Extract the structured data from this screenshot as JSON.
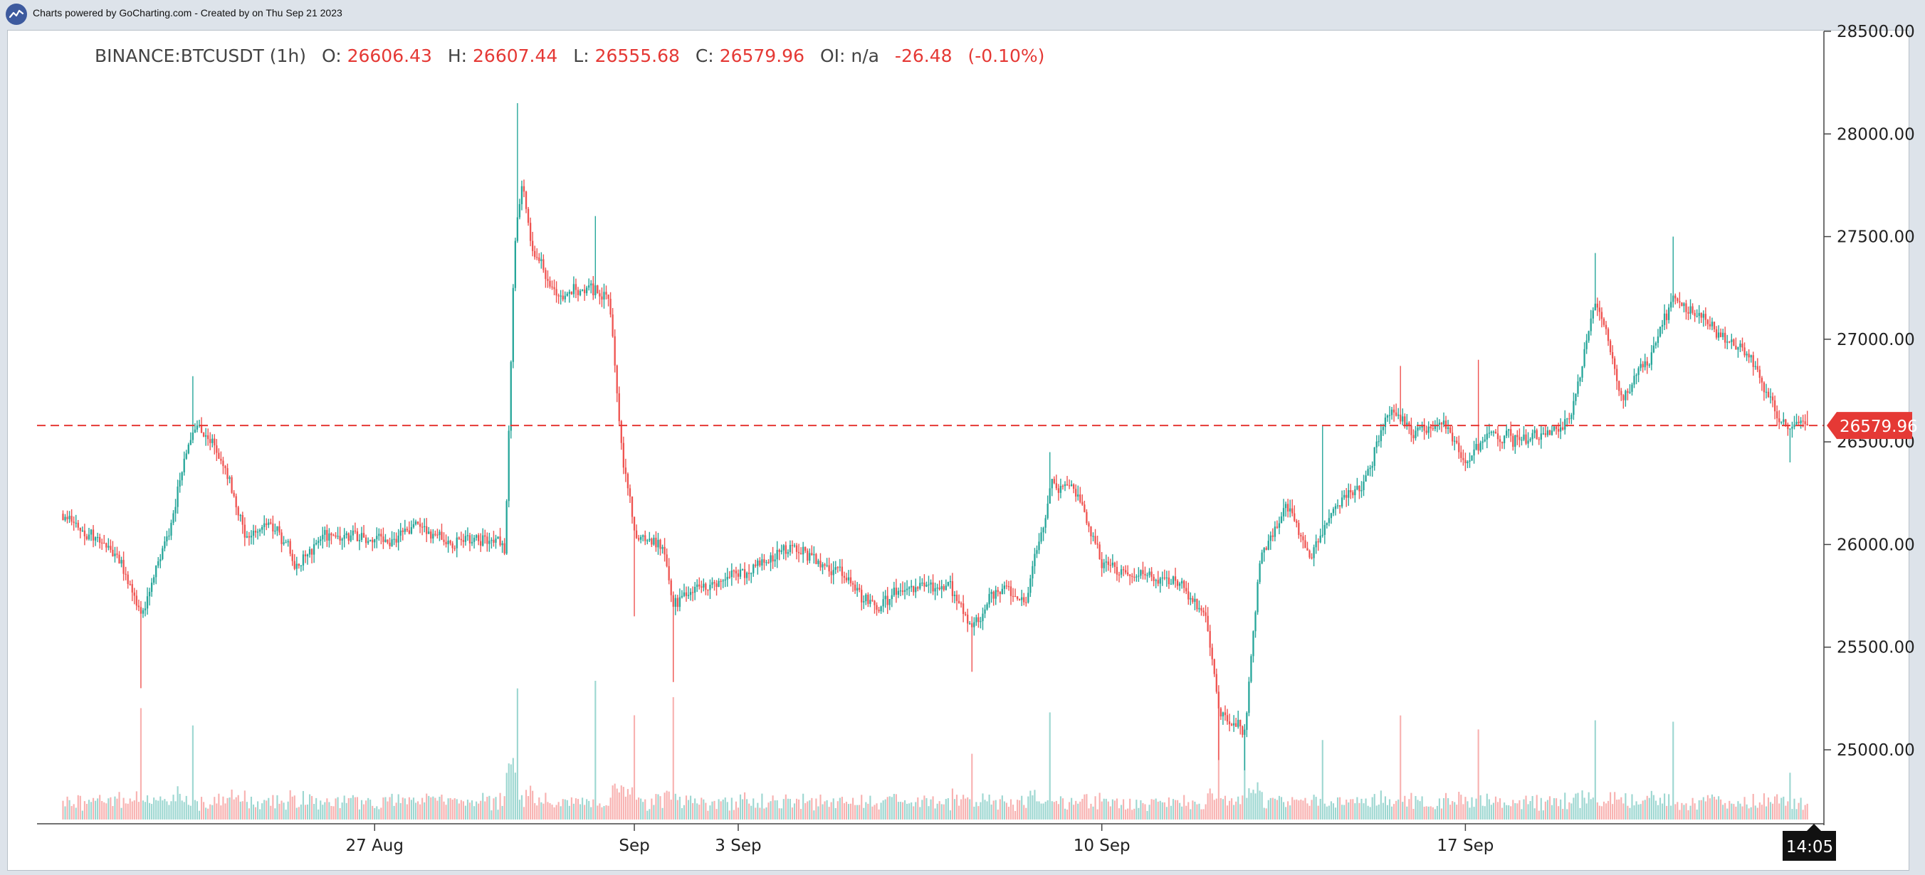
{
  "header": {
    "credit": "Charts powered by GoCharting.com - Created by  on Thu Sep 21 2023",
    "logo_icon": "chart-line-icon"
  },
  "legend": {
    "symbol": "BINANCE:BTCUSDT (1h)",
    "open_label": "O:",
    "open": "26606.43",
    "high_label": "H:",
    "high": "26607.44",
    "low_label": "L:",
    "low": "26555.68",
    "close_label": "C:",
    "close": "26579.96",
    "oi_label": "OI:",
    "oi": "n/a",
    "change": "-26.48",
    "change_pct": "(-0.10%)"
  },
  "price_label": "26579.96",
  "time_label": "14:05",
  "colors": {
    "up": "#26a69a",
    "down": "#ef5350",
    "price_line": "#e53935",
    "time_badge": "#111111"
  },
  "chart_data": {
    "type": "candlestick",
    "timeframe": "1h",
    "ylim": [
      24650,
      28500
    ],
    "y_ticks": [
      "25000.00",
      "25500.00",
      "26000.00",
      "26500.00",
      "27000.00",
      "27500.00",
      "28000.00",
      "28500.00"
    ],
    "x_ticks": [
      {
        "label": "27 Aug",
        "date": "2023-08-27"
      },
      {
        "label": "Sep",
        "date": "2023-09-01"
      },
      {
        "label": "3 Sep",
        "date": "2023-09-03"
      },
      {
        "label": "10 Sep",
        "date": "2023-09-10"
      },
      {
        "label": "17 Sep",
        "date": "2023-09-17"
      }
    ],
    "last_price": 26579.96,
    "price_path": [
      {
        "date": "2023-08-21",
        "price": 26150
      },
      {
        "date": "2023-08-22",
        "price": 25950
      },
      {
        "date": "2023-08-22T12:00",
        "price": 25650
      },
      {
        "date": "2023-08-23",
        "price": 26050
      },
      {
        "date": "2023-08-23T12:00",
        "price": 26600
      },
      {
        "date": "2023-08-24",
        "price": 26450
      },
      {
        "date": "2023-08-24T12:00",
        "price": 26050
      },
      {
        "date": "2023-08-25",
        "price": 26100
      },
      {
        "date": "2023-08-25T12:00",
        "price": 25900
      },
      {
        "date": "2023-08-26",
        "price": 26050
      },
      {
        "date": "2023-08-27",
        "price": 26020
      },
      {
        "date": "2023-08-28",
        "price": 26080
      },
      {
        "date": "2023-08-28T12:00",
        "price": 26000
      },
      {
        "date": "2023-08-29",
        "price": 26050
      },
      {
        "date": "2023-08-29T12:00",
        "price": 25980
      },
      {
        "date": "2023-08-29T16:00",
        "price": 27500
      },
      {
        "date": "2023-08-29T20:00",
        "price": 27800
      },
      {
        "date": "2023-08-30",
        "price": 27450
      },
      {
        "date": "2023-08-30T12:00",
        "price": 27200
      },
      {
        "date": "2023-08-31",
        "price": 27250
      },
      {
        "date": "2023-08-31T12:00",
        "price": 27200
      },
      {
        "date": "2023-08-31T18:00",
        "price": 26400
      },
      {
        "date": "2023-09-01",
        "price": 26050
      },
      {
        "date": "2023-09-01T12:00",
        "price": 26000
      },
      {
        "date": "2023-09-01T18:00",
        "price": 25700
      },
      {
        "date": "2023-09-02",
        "price": 25780
      },
      {
        "date": "2023-09-03",
        "price": 25850
      },
      {
        "date": "2023-09-04",
        "price": 26000
      },
      {
        "date": "2023-09-05",
        "price": 25850
      },
      {
        "date": "2023-09-05T12:00",
        "price": 25700
      },
      {
        "date": "2023-09-06",
        "price": 25750
      },
      {
        "date": "2023-09-07",
        "price": 25800
      },
      {
        "date": "2023-09-07T12:00",
        "price": 25600
      },
      {
        "date": "2023-09-08",
        "price": 25800
      },
      {
        "date": "2023-09-08T12:00",
        "price": 25700
      },
      {
        "date": "2023-09-09",
        "price": 26300
      },
      {
        "date": "2023-09-09T12:00",
        "price": 26250
      },
      {
        "date": "2023-09-10",
        "price": 25900
      },
      {
        "date": "2023-09-11",
        "price": 25850
      },
      {
        "date": "2023-09-11T12:00",
        "price": 25800
      },
      {
        "date": "2023-09-12",
        "price": 25650
      },
      {
        "date": "2023-09-12T06:00",
        "price": 25150
      },
      {
        "date": "2023-09-12T18:00",
        "price": 25100
      },
      {
        "date": "2023-09-13",
        "price": 25900
      },
      {
        "date": "2023-09-13T12:00",
        "price": 26200
      },
      {
        "date": "2023-09-14",
        "price": 25950
      },
      {
        "date": "2023-09-14T12:00",
        "price": 26200
      },
      {
        "date": "2023-09-15",
        "price": 26300
      },
      {
        "date": "2023-09-15T12:00",
        "price": 26650
      },
      {
        "date": "2023-09-16",
        "price": 26550
      },
      {
        "date": "2023-09-16T12:00",
        "price": 26600
      },
      {
        "date": "2023-09-17",
        "price": 26400
      },
      {
        "date": "2023-09-17T12:00",
        "price": 26550
      },
      {
        "date": "2023-09-18",
        "price": 26500
      },
      {
        "date": "2023-09-18T12:00",
        "price": 26550
      },
      {
        "date": "2023-09-19",
        "price": 26600
      },
      {
        "date": "2023-09-19T12:00",
        "price": 27200
      },
      {
        "date": "2023-09-20",
        "price": 26700
      },
      {
        "date": "2023-09-20T12:00",
        "price": 26900
      },
      {
        "date": "2023-09-21",
        "price": 27200
      },
      {
        "date": "2023-09-21T12:00",
        "price": 27100
      },
      {
        "date": "2023-09-22",
        "price": 27000
      },
      {
        "date": "2023-09-22T12:00",
        "price": 26900
      },
      {
        "date": "2023-09-23",
        "price": 26600
      },
      {
        "date": "2023-09-23T12:00",
        "price": 26580
      }
    ],
    "spikes": [
      {
        "date": "2023-08-22T12:00",
        "low": 25300
      },
      {
        "date": "2023-08-23T12:00",
        "high": 26820
      },
      {
        "date": "2023-08-29T18:00",
        "high": 28150
      },
      {
        "date": "2023-08-31T06:00",
        "high": 27600
      },
      {
        "date": "2023-09-01T00:00",
        "low": 25650
      },
      {
        "date": "2023-09-01T18:00",
        "low": 25330
      },
      {
        "date": "2023-09-07T12:00",
        "low": 25380
      },
      {
        "date": "2023-09-09T00:00",
        "high": 26450
      },
      {
        "date": "2023-09-12T06:00",
        "low": 24950
      },
      {
        "date": "2023-09-12T18:00",
        "low": 24900
      },
      {
        "date": "2023-09-14T06:00",
        "high": 26580
      },
      {
        "date": "2023-09-15T18:00",
        "high": 26870
      },
      {
        "date": "2023-09-17T06:00",
        "high": 26900
      },
      {
        "date": "2023-09-19T12:00",
        "high": 27420
      },
      {
        "date": "2023-09-21T00:00",
        "high": 27500
      },
      {
        "date": "2023-09-23T06:00",
        "low": 26400
      }
    ]
  }
}
